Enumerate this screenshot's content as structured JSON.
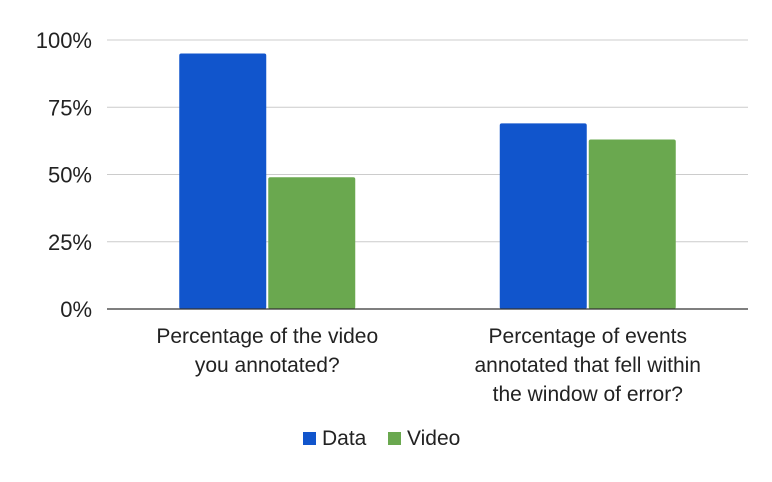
{
  "chart_data": {
    "type": "bar",
    "title": "",
    "xlabel": "",
    "ylabel": "",
    "ylim": [
      0,
      1
    ],
    "yticks": [
      {
        "value": 0,
        "label": "0%"
      },
      {
        "value": 0.25,
        "label": "25%"
      },
      {
        "value": 0.5,
        "label": "50%"
      },
      {
        "value": 0.75,
        "label": "75%"
      },
      {
        "value": 1,
        "label": "100%"
      }
    ],
    "grid": true,
    "legend_position": "bottom",
    "categories": [
      {
        "lines": [
          "Percentage of the video",
          "you annotated?"
        ]
      },
      {
        "lines": [
          "Percentage of events",
          "annotated that fell within",
          "the window of error?"
        ]
      }
    ],
    "series": [
      {
        "name": "Data",
        "color": "#1155cc",
        "values": [
          0.95,
          0.69
        ]
      },
      {
        "name": "Video",
        "color": "#6aa84f",
        "values": [
          0.49,
          0.63
        ]
      }
    ]
  }
}
